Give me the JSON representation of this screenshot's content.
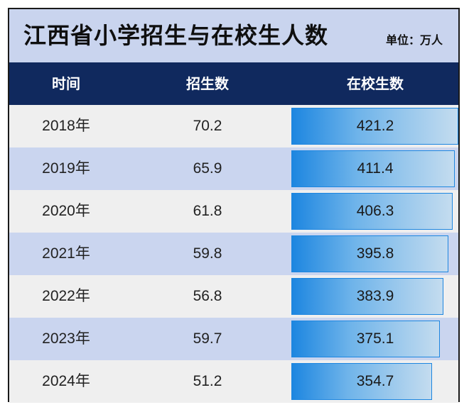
{
  "title": "江西省小学招生与在校生人数",
  "unit": "单位：万人",
  "columns": [
    "时间",
    "招生数",
    "在校生数"
  ],
  "colors": {
    "title_background": "#c9d4ee",
    "header_background": "#10295e",
    "row_light": "#efefef",
    "row_blue": "#cad5ef",
    "bar_start": "#1d86e0",
    "bar_end": "#c4dcef"
  },
  "chart_data": {
    "type": "table",
    "columns": [
      "时间",
      "招生数",
      "在校生数"
    ],
    "rows": [
      {
        "year": "2018年",
        "enrollment": "70.2",
        "students": 421.2
      },
      {
        "year": "2019年",
        "enrollment": "65.9",
        "students": 411.4
      },
      {
        "year": "2020年",
        "enrollment": "61.8",
        "students": 406.3
      },
      {
        "year": "2021年",
        "enrollment": "59.8",
        "students": 395.8
      },
      {
        "year": "2022年",
        "enrollment": "56.8",
        "students": 383.9
      },
      {
        "year": "2023年",
        "enrollment": "59.7",
        "students": 375.1
      },
      {
        "year": "2024年",
        "enrollment": "51.2",
        "students": 354.7
      }
    ],
    "bar_column": "在校生数"
  }
}
